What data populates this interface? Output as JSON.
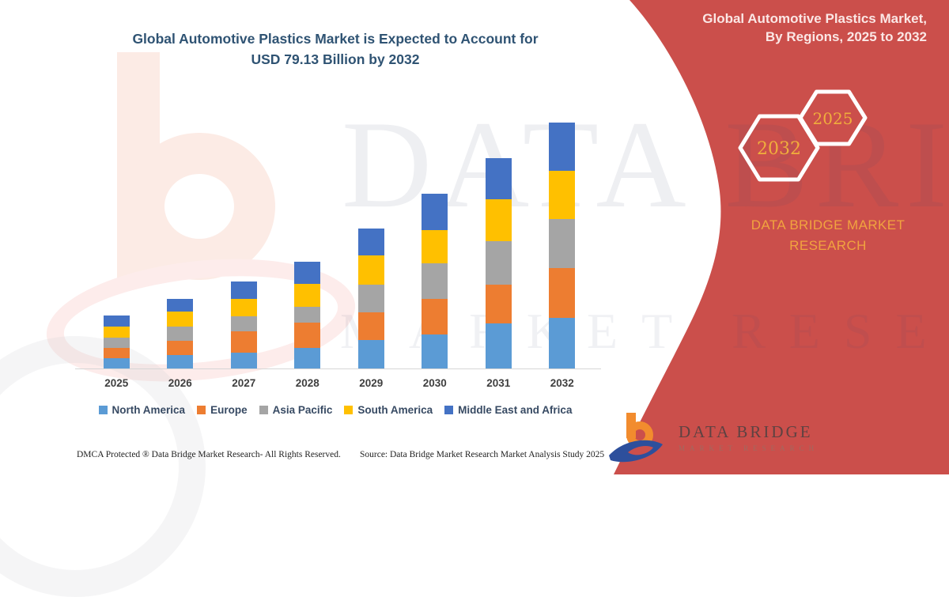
{
  "title": {
    "line1": "Global Automotive Plastics Market is Expected to Account for",
    "line2": "USD 79.13 Billion by 2032"
  },
  "side_panel": {
    "heading_line1": "Global Automotive Plastics Market,",
    "heading_line2": "By Regions, 2025 to 2032",
    "hexagon_labels": {
      "big": "2032",
      "small": "2025"
    },
    "brand_line1": "DATA BRIDGE MARKET",
    "brand_line2": "RESEARCH",
    "bg_color": "#cb4f4b",
    "accent_text_color": "#f1a33f"
  },
  "logo": {
    "name": "DATA BRIDGE",
    "sub": "MARKET RESEARCH"
  },
  "watermark": {
    "line1": "DATA BRIDGE",
    "line2": "MARKET RESEARCH"
  },
  "footer": {
    "left": "DMCA Protected ® Data Bridge Market Research-  All Rights Reserved.",
    "right": "Source: Data Bridge Market Research  Market Analysis Study 2025"
  },
  "chart_data": {
    "type": "bar",
    "stacked": true,
    "unit": "USD Billion",
    "title": "Global Automotive Plastics Market is Expected to Account for USD 79.13 Billion by 2032",
    "categories": [
      "2025",
      "2026",
      "2027",
      "2028",
      "2029",
      "2030",
      "2031",
      "2032"
    ],
    "series": [
      {
        "name": "North America",
        "color": "#5b9bd5",
        "values": [
          3.3,
          4.4,
          5.2,
          6.5,
          9.1,
          11.0,
          14.5,
          16.2
        ]
      },
      {
        "name": "Europe",
        "color": "#ed7d31",
        "values": [
          3.4,
          4.6,
          6.8,
          8.0,
          9.0,
          11.4,
          12.5,
          16.1
        ]
      },
      {
        "name": "Asia Pacific",
        "color": "#a5a5a5",
        "values": [
          3.3,
          4.6,
          4.9,
          5.1,
          8.9,
          11.4,
          13.9,
          15.8
        ]
      },
      {
        "name": "South America",
        "color": "#ffc000",
        "values": [
          3.5,
          4.8,
          5.7,
          7.4,
          9.3,
          10.6,
          13.5,
          15.6
        ]
      },
      {
        "name": "Middle East and Africa",
        "color": "#4472c4",
        "values": [
          3.6,
          4.1,
          5.7,
          7.0,
          8.7,
          11.8,
          13.3,
          15.5
        ]
      }
    ],
    "annotations": [
      "2032 total ≈ USD 79.13 Billion"
    ],
    "ylim": [
      0,
      80
    ],
    "xlabel": "",
    "ylabel": "",
    "grid": false,
    "y_axis_shown": false,
    "legend_position": "bottom"
  }
}
